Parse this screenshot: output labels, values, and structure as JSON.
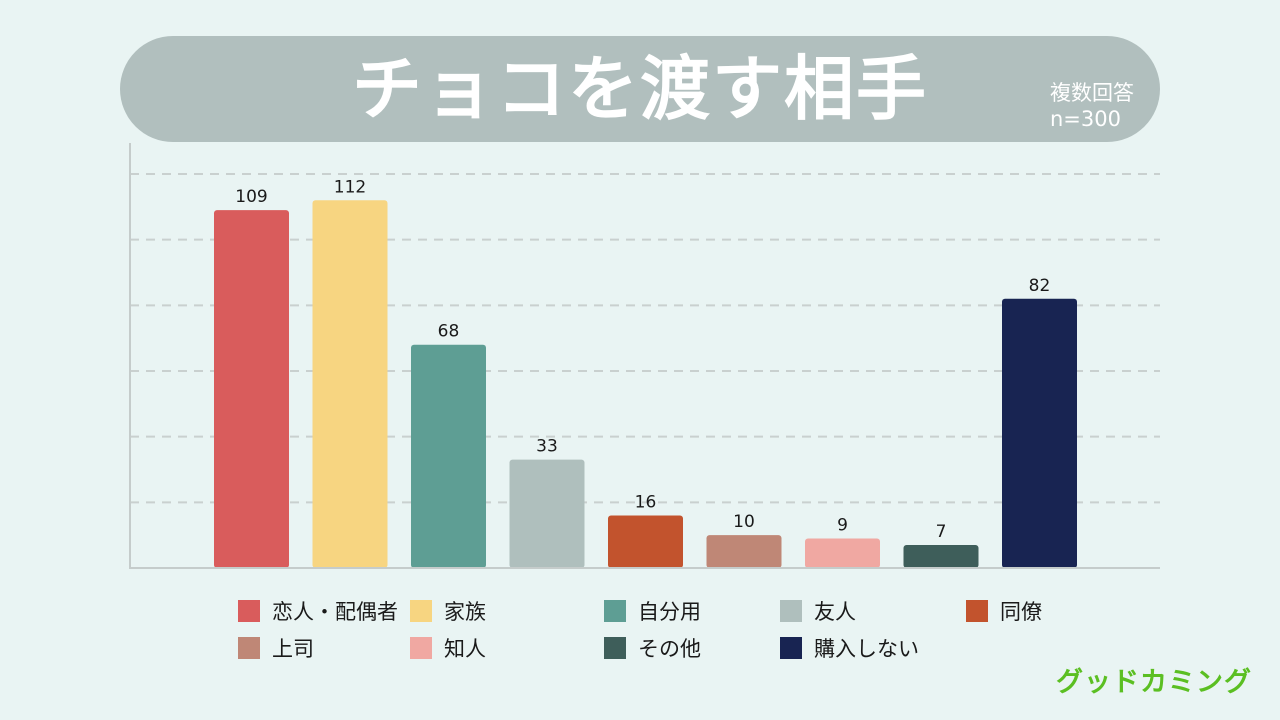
{
  "header": {
    "title": "チョコを渡す相手",
    "note_line1": "複数回答",
    "note_line2": "n=300"
  },
  "chart_data": {
    "type": "bar",
    "title": "チョコを渡す相手",
    "categories": [
      "恋人・配偶者",
      "家族",
      "自分用",
      "友人",
      "同僚",
      "上司",
      "知人",
      "その他",
      "購入しない"
    ],
    "values": [
      109,
      112,
      68,
      33,
      16,
      10,
      9,
      7,
      82
    ],
    "colors": [
      "#d95c5c",
      "#f7d581",
      "#5e9e94",
      "#afbfbd",
      "#c2532d",
      "#bf8776",
      "#f0a8a2",
      "#3e5e5a",
      "#182452"
    ],
    "ylim": [
      0,
      120
    ],
    "grid": true,
    "legend": "bottom"
  },
  "logo": {
    "text": "グッドカミング",
    "color": "#5bbf22"
  }
}
